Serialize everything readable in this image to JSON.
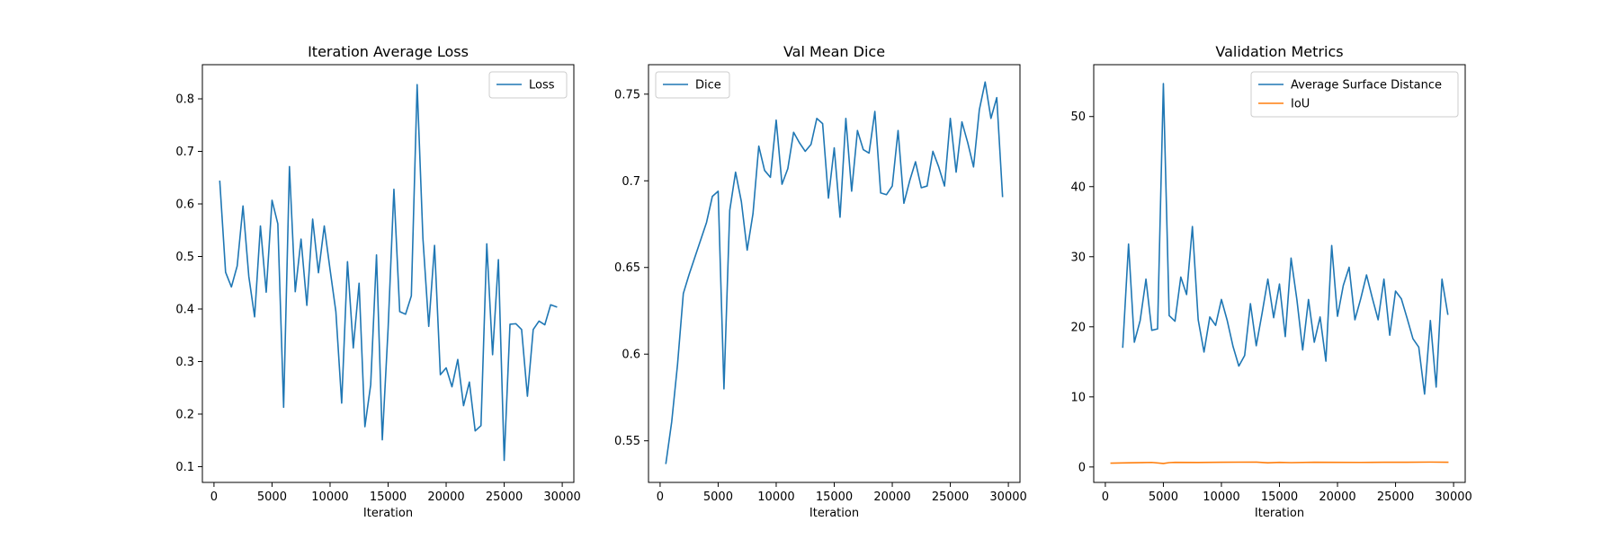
{
  "chart_data": [
    {
      "type": "line",
      "title": "Iteration Average Loss",
      "xlabel": "Iteration",
      "ylabel": "",
      "xlim": [
        -1000,
        31000
      ],
      "ylim": [
        0.07,
        0.865
      ],
      "xticks": [
        0,
        5000,
        10000,
        15000,
        20000,
        25000,
        30000
      ],
      "yticks": [
        0.1,
        0.2,
        0.3,
        0.4,
        0.5,
        0.6,
        0.7,
        0.8
      ],
      "legend_position": "upper right",
      "series": [
        {
          "name": "Loss",
          "color": "#1f77b4",
          "x": [
            500,
            1000,
            1500,
            2000,
            2500,
            3000,
            3500,
            4000,
            4500,
            5000,
            5500,
            6000,
            6500,
            7000,
            7500,
            8000,
            8500,
            9000,
            9500,
            10000,
            10500,
            11000,
            11500,
            12000,
            12500,
            13000,
            13500,
            14000,
            14500,
            15000,
            15500,
            16000,
            16500,
            17000,
            17500,
            18000,
            18500,
            19000,
            19500,
            20000,
            20500,
            21000,
            21500,
            22000,
            22500,
            23000,
            23500,
            24000,
            24500,
            25000,
            25500,
            26000,
            26500,
            27000,
            27500,
            28000,
            28500,
            29000,
            29500
          ],
          "y": [
            0.643,
            0.47,
            0.442,
            0.482,
            0.596,
            0.462,
            0.385,
            0.558,
            0.432,
            0.607,
            0.562,
            0.213,
            0.671,
            0.433,
            0.533,
            0.407,
            0.571,
            0.469,
            0.558,
            0.475,
            0.395,
            0.221,
            0.49,
            0.326,
            0.449,
            0.176,
            0.256,
            0.503,
            0.151,
            0.363,
            0.628,
            0.395,
            0.39,
            0.425,
            0.827,
            0.534,
            0.367,
            0.521,
            0.275,
            0.288,
            0.252,
            0.304,
            0.216,
            0.261,
            0.168,
            0.178,
            0.524,
            0.313,
            0.494,
            0.112,
            0.371,
            0.372,
            0.361,
            0.234,
            0.361,
            0.377,
            0.37,
            0.408,
            0.404
          ]
        }
      ]
    },
    {
      "type": "line",
      "title": "Val Mean Dice",
      "xlabel": "Iteration",
      "ylabel": "",
      "xlim": [
        -1000,
        31000
      ],
      "ylim": [
        0.526,
        0.767
      ],
      "xticks": [
        0,
        5000,
        10000,
        15000,
        20000,
        25000,
        30000
      ],
      "yticks": [
        0.55,
        0.6,
        0.65,
        0.7,
        0.75
      ],
      "legend_position": "upper left",
      "series": [
        {
          "name": "Dice",
          "color": "#1f77b4",
          "x": [
            500,
            1000,
            1500,
            2000,
            2500,
            3000,
            3500,
            4000,
            4500,
            5000,
            5500,
            6000,
            6500,
            7000,
            7500,
            8000,
            8500,
            9000,
            9500,
            10000,
            10500,
            11000,
            11500,
            12000,
            12500,
            13000,
            13500,
            14000,
            14500,
            15000,
            15500,
            16000,
            16500,
            17000,
            17500,
            18000,
            18500,
            19000,
            19500,
            20000,
            20500,
            21000,
            21500,
            22000,
            22500,
            23000,
            23500,
            24000,
            24500,
            25000,
            25500,
            26000,
            26500,
            27000,
            27500,
            28000,
            28500,
            29000,
            29500
          ],
          "y": [
            0.537,
            0.561,
            0.594,
            0.635,
            0.646,
            0.656,
            0.666,
            0.676,
            0.691,
            0.694,
            0.58,
            0.683,
            0.705,
            0.688,
            0.66,
            0.681,
            0.72,
            0.706,
            0.702,
            0.735,
            0.698,
            0.707,
            0.728,
            0.722,
            0.717,
            0.721,
            0.736,
            0.733,
            0.69,
            0.719,
            0.679,
            0.736,
            0.694,
            0.729,
            0.718,
            0.716,
            0.74,
            0.693,
            0.692,
            0.697,
            0.729,
            0.687,
            0.7,
            0.711,
            0.696,
            0.697,
            0.717,
            0.708,
            0.697,
            0.736,
            0.705,
            0.734,
            0.722,
            0.708,
            0.741,
            0.757,
            0.736,
            0.748,
            0.691
          ]
        }
      ]
    },
    {
      "type": "line",
      "title": "Validation Metrics",
      "xlabel": "Iteration",
      "ylabel": "",
      "xlim": [
        -1000,
        31000
      ],
      "ylim": [
        -2.2,
        57.4
      ],
      "xticks": [
        0,
        5000,
        10000,
        15000,
        20000,
        25000,
        30000
      ],
      "yticks": [
        0,
        10,
        20,
        30,
        40,
        50
      ],
      "legend_position": "upper right",
      "series": [
        {
          "name": "Average Surface Distance",
          "color": "#1f77b4",
          "x": [
            1500,
            2000,
            2500,
            3000,
            3500,
            4000,
            4500,
            5000,
            5500,
            6000,
            6500,
            7000,
            7500,
            8000,
            8500,
            9000,
            9500,
            10000,
            10500,
            11000,
            11500,
            12000,
            12500,
            13000,
            13500,
            14000,
            14500,
            15000,
            15500,
            16000,
            16500,
            17000,
            17500,
            18000,
            18500,
            19000,
            19500,
            20000,
            20500,
            21000,
            21500,
            22000,
            22500,
            23000,
            23500,
            24000,
            24500,
            25000,
            25500,
            26000,
            26500,
            27000,
            27500,
            28000,
            28500,
            29000,
            29500
          ],
          "y": [
            17.1,
            31.8,
            17.8,
            20.9,
            26.8,
            19.5,
            19.7,
            54.7,
            21.6,
            20.8,
            27.1,
            24.6,
            34.3,
            21.0,
            16.4,
            21.4,
            20.2,
            23.9,
            20.9,
            17.2,
            14.4,
            15.9,
            23.3,
            17.3,
            21.9,
            26.8,
            21.3,
            26.1,
            18.6,
            29.8,
            23.9,
            16.7,
            23.9,
            17.8,
            21.4,
            15.1,
            31.6,
            21.5,
            25.9,
            28.5,
            21.0,
            24.0,
            27.4,
            24.1,
            21.0,
            26.8,
            18.8,
            25.1,
            24.0,
            21.2,
            18.3,
            17.1,
            10.4,
            20.9,
            11.4,
            26.8,
            21.8
          ]
        },
        {
          "name": "IoU",
          "color": "#ff7f0e",
          "x": [
            500,
            2000,
            4000,
            5000,
            5500,
            6000,
            8000,
            10000,
            13000,
            14000,
            15000,
            16000,
            18000,
            20000,
            22000,
            24000,
            26000,
            28000,
            29500
          ],
          "y": [
            0.55,
            0.6,
            0.65,
            0.5,
            0.62,
            0.66,
            0.64,
            0.68,
            0.7,
            0.6,
            0.66,
            0.62,
            0.68,
            0.66,
            0.65,
            0.68,
            0.68,
            0.7,
            0.68
          ]
        }
      ]
    }
  ]
}
